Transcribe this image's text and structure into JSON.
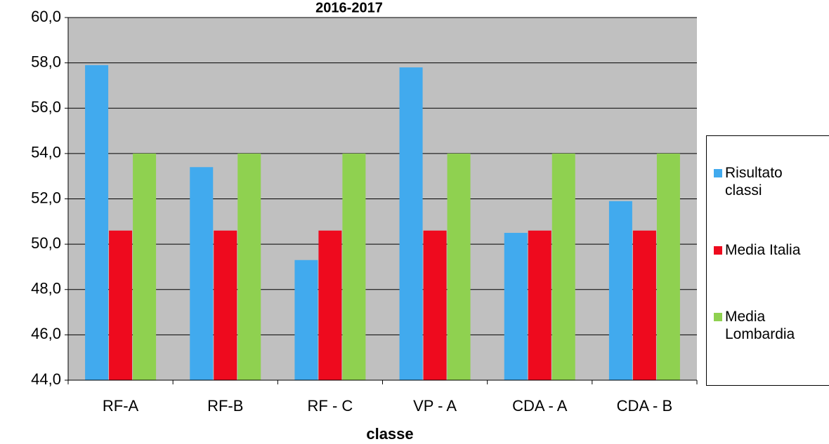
{
  "chart_data": {
    "type": "bar",
    "title": "2016-2017",
    "x_label": "classe",
    "categories": [
      "RF-A",
      "RF-B",
      "RF - C",
      "VP - A",
      "CDA - A",
      "CDA - B"
    ],
    "series": [
      {
        "name": "Risultato classi",
        "color": "#41aaee",
        "values": [
          57.9,
          53.4,
          49.3,
          57.8,
          50.5,
          51.9
        ]
      },
      {
        "name": "Media Italia",
        "color": "#ee0a1e",
        "values": [
          50.6,
          50.6,
          50.6,
          50.6,
          50.6,
          50.6
        ]
      },
      {
        "name": "Media Lombardia",
        "color": "#8fd150",
        "values": [
          54.0,
          54.0,
          54.0,
          54.0,
          54.0,
          54.0
        ]
      }
    ],
    "ylim": [
      44,
      60
    ],
    "yticks": [
      {
        "value": 44,
        "label": "44,0"
      },
      {
        "value": 46,
        "label": "46,0"
      },
      {
        "value": 48,
        "label": "48,0"
      },
      {
        "value": 50,
        "label": "50,0"
      },
      {
        "value": 52,
        "label": "52,0"
      },
      {
        "value": 54,
        "label": "54,0"
      },
      {
        "value": 56,
        "label": "56,0"
      },
      {
        "value": 58,
        "label": "58,0"
      },
      {
        "value": 60,
        "label": "60,0"
      }
    ],
    "grid": true,
    "legend": "right"
  }
}
